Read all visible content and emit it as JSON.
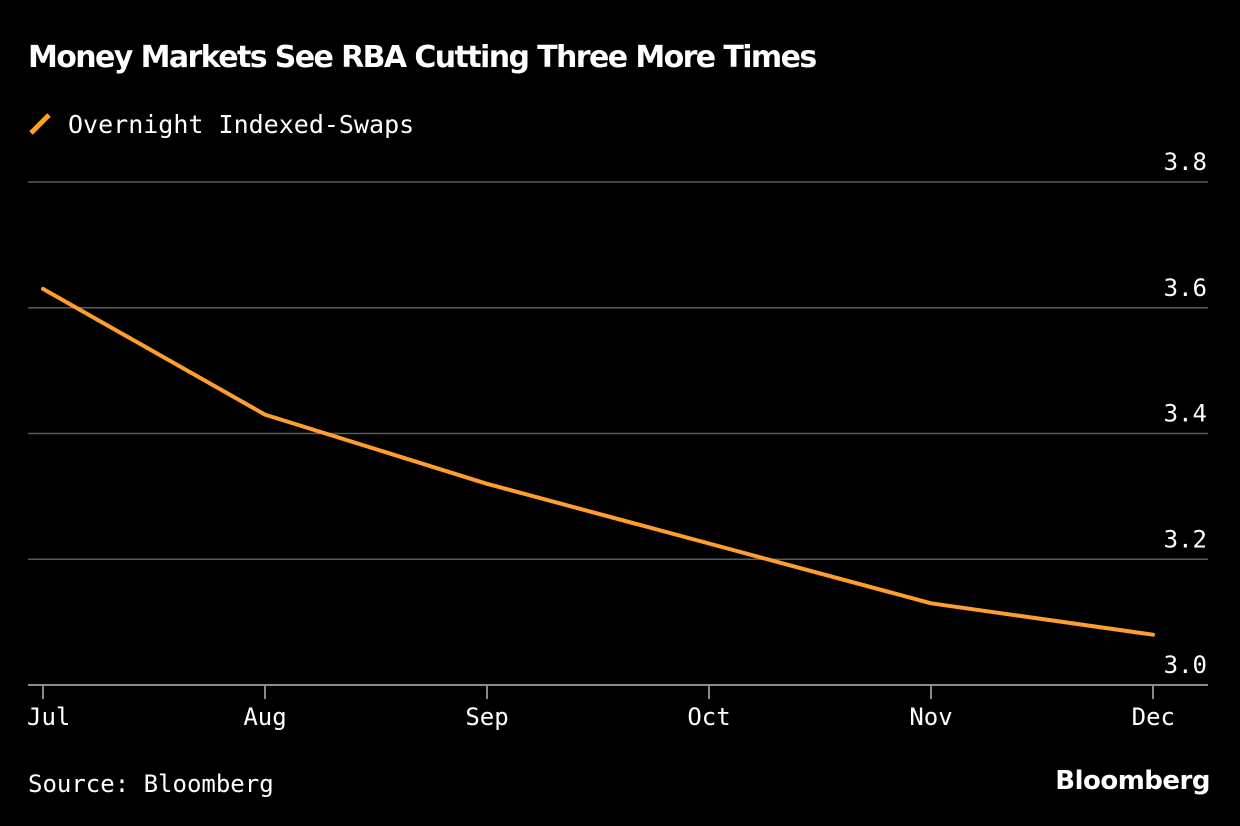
{
  "chart_data": {
    "type": "line",
    "title": "Money Markets See RBA Cutting Three More Times",
    "categories": [
      "Jul",
      "Aug",
      "Sep",
      "Oct",
      "Nov",
      "Dec"
    ],
    "series": [
      {
        "name": "Overnight Indexed-Swaps",
        "values": [
          3.63,
          3.43,
          3.32,
          3.225,
          3.13,
          3.08
        ],
        "color": "#ff9e2c"
      }
    ],
    "y_ticks": [
      "3.0",
      "3.2",
      "3.4",
      "3.6",
      "3.8"
    ],
    "ylim": [
      3.0,
      3.8
    ],
    "y_axis_side": "right",
    "grid": true,
    "legend_position": "top-left",
    "source": "Source: Bloomberg",
    "brand": "Bloomberg"
  },
  "colors": {
    "background": "#000000",
    "text": "#ffffff",
    "gridline": "#5a5a5a",
    "axis": "#8a8a8a",
    "line": "#ff9e2c"
  }
}
